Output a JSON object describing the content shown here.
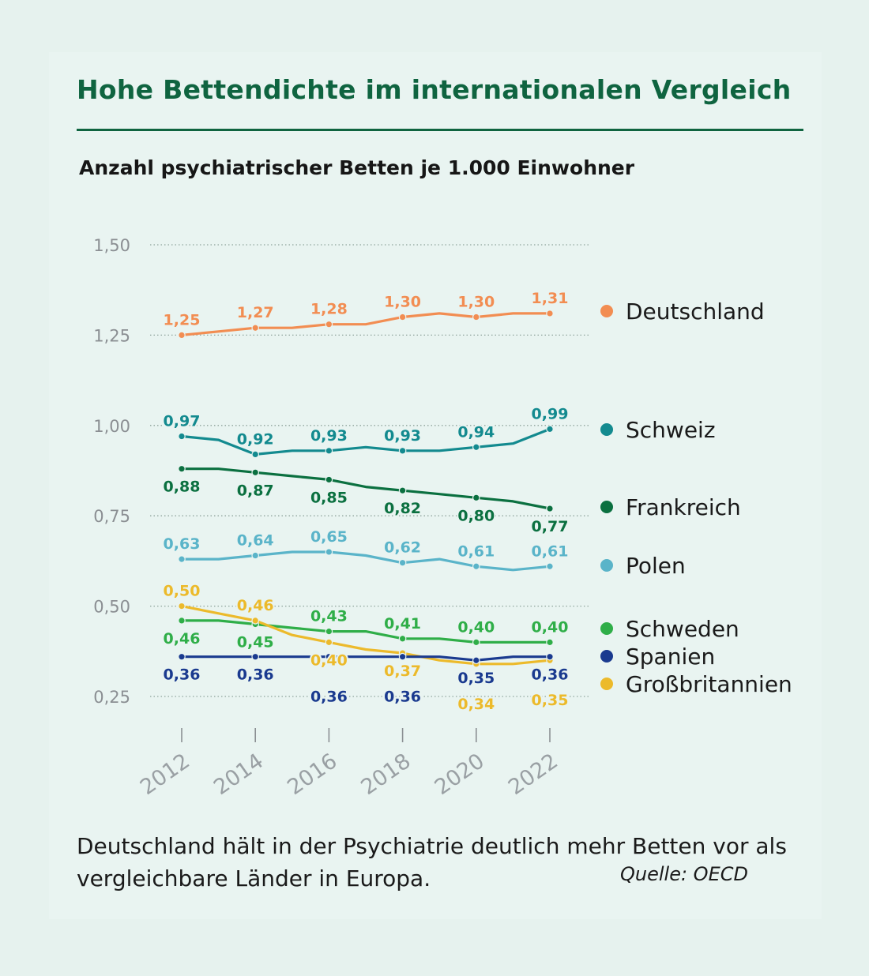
{
  "header": {
    "title": "Hohe Bettendichte im internationalen Vergleich",
    "subtitle": "Anzahl psychiatrischer Betten je 1.000 Einwohner"
  },
  "footer": {
    "caption": "Deutschland hält in der Psychiatrie deutlich mehr Betten vor als vergleichbare Länder in Europa.",
    "source": "Quelle: OECD"
  },
  "chart_data": {
    "type": "line",
    "title": "Anzahl psychiatrischer Betten je 1.000 Einwohner",
    "xlabel": "",
    "ylabel": "",
    "ylim": [
      0.25,
      1.5
    ],
    "xlim": [
      2012,
      2022
    ],
    "grid": true,
    "legend_position": "right",
    "y_ticks": [
      {
        "value": 0.25,
        "label": "0,25"
      },
      {
        "value": 0.5,
        "label": "0,50"
      },
      {
        "value": 0.75,
        "label": "0,75"
      },
      {
        "value": 1.0,
        "label": "1,00"
      },
      {
        "value": 1.25,
        "label": "1,25"
      },
      {
        "value": 1.5,
        "label": "1,50"
      }
    ],
    "x_ticks": [
      {
        "value": 2012,
        "label": "2012"
      },
      {
        "value": 2014,
        "label": "2014"
      },
      {
        "value": 2016,
        "label": "2016"
      },
      {
        "value": 2018,
        "label": "2018"
      },
      {
        "value": 2020,
        "label": "2020"
      },
      {
        "value": 2022,
        "label": "2022"
      }
    ],
    "series": [
      {
        "name": "Deutschland",
        "color": "#f28d52",
        "x": [
          2012,
          2013,
          2014,
          2015,
          2016,
          2017,
          2018,
          2019,
          2020,
          2021,
          2022
        ],
        "values": [
          1.25,
          1.26,
          1.27,
          1.27,
          1.28,
          1.28,
          1.3,
          1.31,
          1.3,
          1.31,
          1.31
        ],
        "labels": [
          {
            "x": 2012,
            "text": "1,25",
            "pos": "above"
          },
          {
            "x": 2014,
            "text": "1,27",
            "pos": "above"
          },
          {
            "x": 2016,
            "text": "1,28",
            "pos": "above"
          },
          {
            "x": 2018,
            "text": "1,30",
            "pos": "above"
          },
          {
            "x": 2020,
            "text": "1,30",
            "pos": "above"
          },
          {
            "x": 2022,
            "text": "1,31",
            "pos": "above"
          }
        ]
      },
      {
        "name": "Schweiz",
        "color": "#138a8f",
        "x": [
          2012,
          2013,
          2014,
          2015,
          2016,
          2017,
          2018,
          2019,
          2020,
          2021,
          2022
        ],
        "values": [
          0.97,
          0.96,
          0.92,
          0.93,
          0.93,
          0.94,
          0.93,
          0.93,
          0.94,
          0.95,
          0.99
        ],
        "labels": [
          {
            "x": 2012,
            "text": "0,97",
            "pos": "above"
          },
          {
            "x": 2014,
            "text": "0,92",
            "pos": "above"
          },
          {
            "x": 2016,
            "text": "0,93",
            "pos": "above"
          },
          {
            "x": 2018,
            "text": "0,93",
            "pos": "above"
          },
          {
            "x": 2020,
            "text": "0,94",
            "pos": "above"
          },
          {
            "x": 2022,
            "text": "0,99",
            "pos": "above"
          }
        ]
      },
      {
        "name": "Frankreich",
        "color": "#0b7040",
        "x": [
          2012,
          2013,
          2014,
          2015,
          2016,
          2017,
          2018,
          2019,
          2020,
          2021,
          2022
        ],
        "values": [
          0.88,
          0.88,
          0.87,
          0.86,
          0.85,
          0.83,
          0.82,
          0.81,
          0.8,
          0.79,
          0.77
        ],
        "labels": [
          {
            "x": 2012,
            "text": "0,88",
            "pos": "below"
          },
          {
            "x": 2014,
            "text": "0,87",
            "pos": "below"
          },
          {
            "x": 2016,
            "text": "0,85",
            "pos": "below"
          },
          {
            "x": 2018,
            "text": "0,82",
            "pos": "below"
          },
          {
            "x": 2020,
            "text": "0,80",
            "pos": "below"
          },
          {
            "x": 2022,
            "text": "0,77",
            "pos": "below"
          }
        ]
      },
      {
        "name": "Polen",
        "color": "#5ab4c9",
        "x": [
          2012,
          2013,
          2014,
          2015,
          2016,
          2017,
          2018,
          2019,
          2020,
          2021,
          2022
        ],
        "values": [
          0.63,
          0.63,
          0.64,
          0.65,
          0.65,
          0.64,
          0.62,
          0.63,
          0.61,
          0.6,
          0.61
        ],
        "labels": [
          {
            "x": 2012,
            "text": "0,63",
            "pos": "above"
          },
          {
            "x": 2014,
            "text": "0,64",
            "pos": "above"
          },
          {
            "x": 2016,
            "text": "0,65",
            "pos": "above"
          },
          {
            "x": 2018,
            "text": "0,62",
            "pos": "above"
          },
          {
            "x": 2020,
            "text": "0,61",
            "pos": "above"
          },
          {
            "x": 2022,
            "text": "0,61",
            "pos": "above"
          }
        ]
      },
      {
        "name": "Schweden",
        "color": "#2fae48",
        "x": [
          2012,
          2013,
          2014,
          2015,
          2016,
          2017,
          2018,
          2019,
          2020,
          2021,
          2022
        ],
        "values": [
          0.46,
          0.46,
          0.45,
          0.44,
          0.43,
          0.43,
          0.41,
          0.41,
          0.4,
          0.4,
          0.4
        ],
        "labels": [
          {
            "x": 2012,
            "text": "0,46",
            "pos": "below"
          },
          {
            "x": 2014,
            "text": "0,45",
            "pos": "below"
          },
          {
            "x": 2016,
            "text": "0,43",
            "pos": "above"
          },
          {
            "x": 2018,
            "text": "0,41",
            "pos": "above"
          },
          {
            "x": 2020,
            "text": "0,40",
            "pos": "above"
          },
          {
            "x": 2022,
            "text": "0,40",
            "pos": "above"
          }
        ]
      },
      {
        "name": "Spanien",
        "color": "#1a3a8f",
        "x": [
          2012,
          2013,
          2014,
          2015,
          2016,
          2017,
          2018,
          2019,
          2020,
          2021,
          2022
        ],
        "values": [
          0.36,
          0.36,
          0.36,
          0.36,
          0.36,
          0.36,
          0.36,
          0.36,
          0.35,
          0.36,
          0.36
        ],
        "labels": [
          {
            "x": 2012,
            "text": "0,36",
            "pos": "below"
          },
          {
            "x": 2014,
            "text": "0,36",
            "pos": "below"
          },
          {
            "x": 2016,
            "text": "0,36",
            "pos": "below2"
          },
          {
            "x": 2018,
            "text": "0,36",
            "pos": "below2"
          },
          {
            "x": 2020,
            "text": "0,35",
            "pos": "below"
          },
          {
            "x": 2022,
            "text": "0,36",
            "pos": "below"
          }
        ]
      },
      {
        "name": "Großbritannien",
        "color": "#ecba2b",
        "x": [
          2012,
          2013,
          2014,
          2015,
          2016,
          2017,
          2018,
          2019,
          2020,
          2021,
          2022
        ],
        "values": [
          0.5,
          0.48,
          0.46,
          0.42,
          0.4,
          0.38,
          0.37,
          0.35,
          0.34,
          0.34,
          0.35
        ],
        "labels": [
          {
            "x": 2012,
            "text": "0,50",
            "pos": "above"
          },
          {
            "x": 2014,
            "text": "0,46",
            "pos": "above"
          },
          {
            "x": 2016,
            "text": "0,40",
            "pos": "below"
          },
          {
            "x": 2018,
            "text": "0,37",
            "pos": "below"
          },
          {
            "x": 2020,
            "text": "0,34",
            "pos": "below2"
          },
          {
            "x": 2022,
            "text": "0,35",
            "pos": "below2"
          }
        ]
      }
    ]
  }
}
